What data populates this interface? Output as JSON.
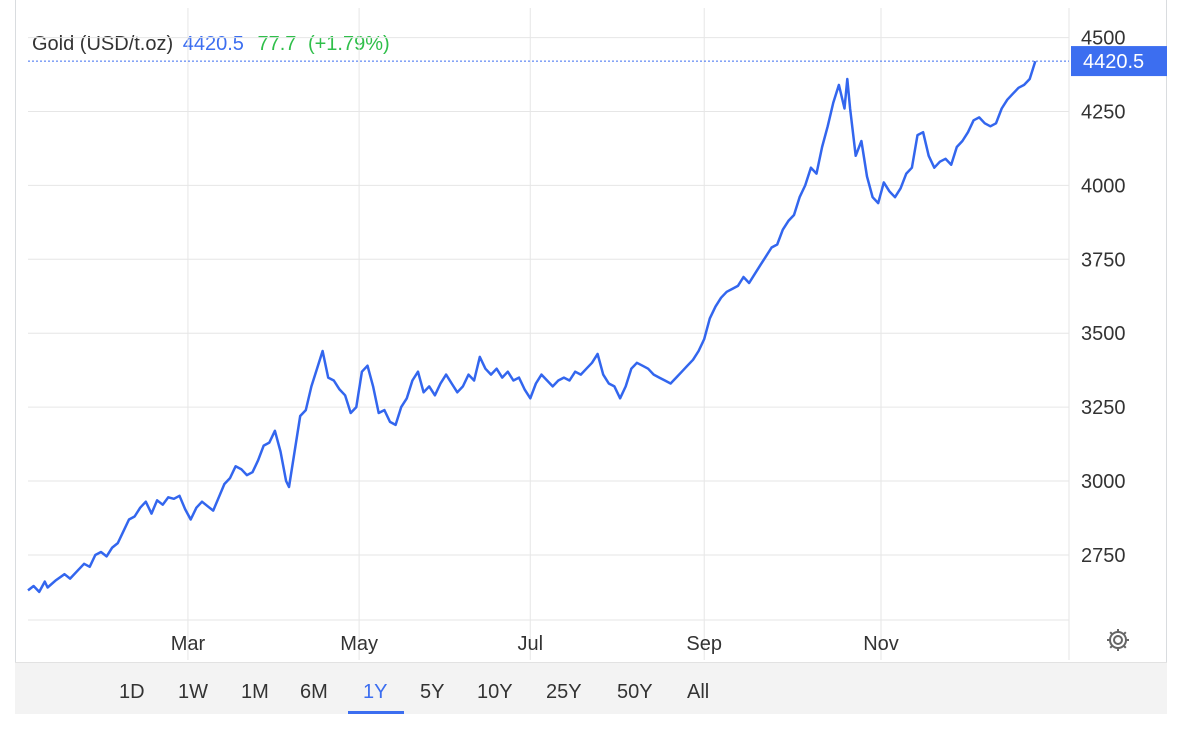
{
  "header": {
    "title": "Gold (USD/t.oz)",
    "price": "4420.5",
    "change": "77.7",
    "change_pct": "(+1.79%)"
  },
  "colors": {
    "line": "#3366ee",
    "last_price_bg": "#3c6ef0",
    "change_up": "#2fbf4a",
    "grid": "#e6e6e6"
  },
  "chart_data": {
    "type": "line",
    "title": "Gold (USD/t.oz)",
    "last_value": "4420.5",
    "y_ticks": [
      "4500",
      "4250",
      "4000",
      "3750",
      "3500",
      "3250",
      "3000",
      "2750"
    ],
    "y_tick_values": [
      4500,
      4250,
      4000,
      3750,
      3500,
      3250,
      3000,
      2750
    ],
    "ylim": [
      2530,
      4600
    ],
    "x_ticks": [
      "Mar",
      "May",
      "Jul",
      "Sep",
      "Nov"
    ],
    "x_tick_values": [
      57,
      118,
      179,
      241,
      304
    ],
    "xlim": [
      0,
      371
    ],
    "grid": true,
    "series": [
      {
        "values": [
          [
            0,
            2630
          ],
          [
            2,
            2645
          ],
          [
            4,
            2625
          ],
          [
            6,
            2660
          ],
          [
            7,
            2640
          ],
          [
            10,
            2665
          ],
          [
            13,
            2685
          ],
          [
            15,
            2670
          ],
          [
            18,
            2700
          ],
          [
            20,
            2720
          ],
          [
            22,
            2710
          ],
          [
            24,
            2750
          ],
          [
            26,
            2760
          ],
          [
            28,
            2745
          ],
          [
            30,
            2775
          ],
          [
            32,
            2790
          ],
          [
            34,
            2830
          ],
          [
            36,
            2870
          ],
          [
            38,
            2880
          ],
          [
            40,
            2910
          ],
          [
            42,
            2930
          ],
          [
            44,
            2890
          ],
          [
            46,
            2935
          ],
          [
            48,
            2920
          ],
          [
            50,
            2945
          ],
          [
            52,
            2940
          ],
          [
            54,
            2950
          ],
          [
            56,
            2905
          ],
          [
            58,
            2870
          ],
          [
            60,
            2910
          ],
          [
            62,
            2930
          ],
          [
            64,
            2915
          ],
          [
            66,
            2900
          ],
          [
            68,
            2945
          ],
          [
            70,
            2990
          ],
          [
            72,
            3010
          ],
          [
            74,
            3050
          ],
          [
            76,
            3040
          ],
          [
            78,
            3020
          ],
          [
            80,
            3030
          ],
          [
            82,
            3070
          ],
          [
            84,
            3120
          ],
          [
            86,
            3130
          ],
          [
            88,
            3170
          ],
          [
            90,
            3100
          ],
          [
            92,
            3000
          ],
          [
            93,
            2980
          ],
          [
            95,
            3100
          ],
          [
            97,
            3220
          ],
          [
            99,
            3240
          ],
          [
            101,
            3320
          ],
          [
            103,
            3380
          ],
          [
            105,
            3440
          ],
          [
            107,
            3350
          ],
          [
            109,
            3340
          ],
          [
            111,
            3310
          ],
          [
            113,
            3290
          ],
          [
            115,
            3230
          ],
          [
            117,
            3250
          ],
          [
            119,
            3370
          ],
          [
            121,
            3390
          ],
          [
            123,
            3320
          ],
          [
            125,
            3230
          ],
          [
            127,
            3240
          ],
          [
            129,
            3200
          ],
          [
            131,
            3190
          ],
          [
            133,
            3250
          ],
          [
            135,
            3280
          ],
          [
            137,
            3340
          ],
          [
            139,
            3370
          ],
          [
            141,
            3300
          ],
          [
            143,
            3320
          ],
          [
            145,
            3290
          ],
          [
            147,
            3330
          ],
          [
            149,
            3360
          ],
          [
            151,
            3330
          ],
          [
            153,
            3300
          ],
          [
            155,
            3320
          ],
          [
            157,
            3360
          ],
          [
            159,
            3340
          ],
          [
            161,
            3420
          ],
          [
            163,
            3380
          ],
          [
            165,
            3360
          ],
          [
            167,
            3380
          ],
          [
            169,
            3350
          ],
          [
            171,
            3370
          ],
          [
            173,
            3340
          ],
          [
            175,
            3350
          ],
          [
            177,
            3310
          ],
          [
            179,
            3280
          ],
          [
            181,
            3330
          ],
          [
            183,
            3360
          ],
          [
            185,
            3340
          ],
          [
            187,
            3320
          ],
          [
            189,
            3340
          ],
          [
            191,
            3350
          ],
          [
            193,
            3340
          ],
          [
            195,
            3370
          ],
          [
            197,
            3360
          ],
          [
            199,
            3380
          ],
          [
            201,
            3400
          ],
          [
            203,
            3430
          ],
          [
            205,
            3360
          ],
          [
            207,
            3330
          ],
          [
            209,
            3320
          ],
          [
            211,
            3280
          ],
          [
            213,
            3320
          ],
          [
            215,
            3380
          ],
          [
            217,
            3400
          ],
          [
            219,
            3390
          ],
          [
            221,
            3380
          ],
          [
            223,
            3360
          ],
          [
            225,
            3350
          ],
          [
            227,
            3340
          ],
          [
            229,
            3330
          ],
          [
            231,
            3350
          ],
          [
            233,
            3370
          ],
          [
            235,
            3390
          ],
          [
            237,
            3410
          ],
          [
            239,
            3440
          ],
          [
            241,
            3480
          ],
          [
            243,
            3550
          ],
          [
            245,
            3590
          ],
          [
            247,
            3620
          ],
          [
            249,
            3640
          ],
          [
            251,
            3650
          ],
          [
            253,
            3660
          ],
          [
            255,
            3690
          ],
          [
            257,
            3670
          ],
          [
            259,
            3700
          ],
          [
            261,
            3730
          ],
          [
            263,
            3760
          ],
          [
            265,
            3790
          ],
          [
            267,
            3800
          ],
          [
            269,
            3850
          ],
          [
            271,
            3880
          ],
          [
            273,
            3900
          ],
          [
            275,
            3960
          ],
          [
            277,
            4000
          ],
          [
            279,
            4060
          ],
          [
            281,
            4040
          ],
          [
            283,
            4130
          ],
          [
            285,
            4200
          ],
          [
            287,
            4280
          ],
          [
            289,
            4340
          ],
          [
            291,
            4260
          ],
          [
            292,
            4360
          ],
          [
            293,
            4260
          ],
          [
            295,
            4100
          ],
          [
            297,
            4150
          ],
          [
            299,
            4030
          ],
          [
            301,
            3960
          ],
          [
            303,
            3940
          ],
          [
            305,
            4010
          ],
          [
            307,
            3980
          ],
          [
            309,
            3960
          ],
          [
            311,
            3990
          ],
          [
            313,
            4040
          ],
          [
            315,
            4060
          ],
          [
            317,
            4170
          ],
          [
            319,
            4180
          ],
          [
            321,
            4100
          ],
          [
            323,
            4060
          ],
          [
            325,
            4080
          ],
          [
            327,
            4090
          ],
          [
            329,
            4070
          ],
          [
            331,
            4130
          ],
          [
            333,
            4150
          ],
          [
            335,
            4180
          ],
          [
            337,
            4220
          ],
          [
            339,
            4230
          ],
          [
            341,
            4210
          ],
          [
            343,
            4200
          ],
          [
            345,
            4210
          ],
          [
            347,
            4260
          ],
          [
            349,
            4290
          ],
          [
            351,
            4310
          ],
          [
            353,
            4330
          ],
          [
            355,
            4340
          ],
          [
            357,
            4360
          ],
          [
            359,
            4420
          ]
        ]
      }
    ]
  },
  "toolbar": {
    "ranges": [
      "1D",
      "1W",
      "1M",
      "6M",
      "1Y",
      "5Y",
      "10Y",
      "25Y",
      "50Y",
      "All"
    ],
    "active": "1Y"
  },
  "icons": {
    "settings": "gear-icon"
  }
}
